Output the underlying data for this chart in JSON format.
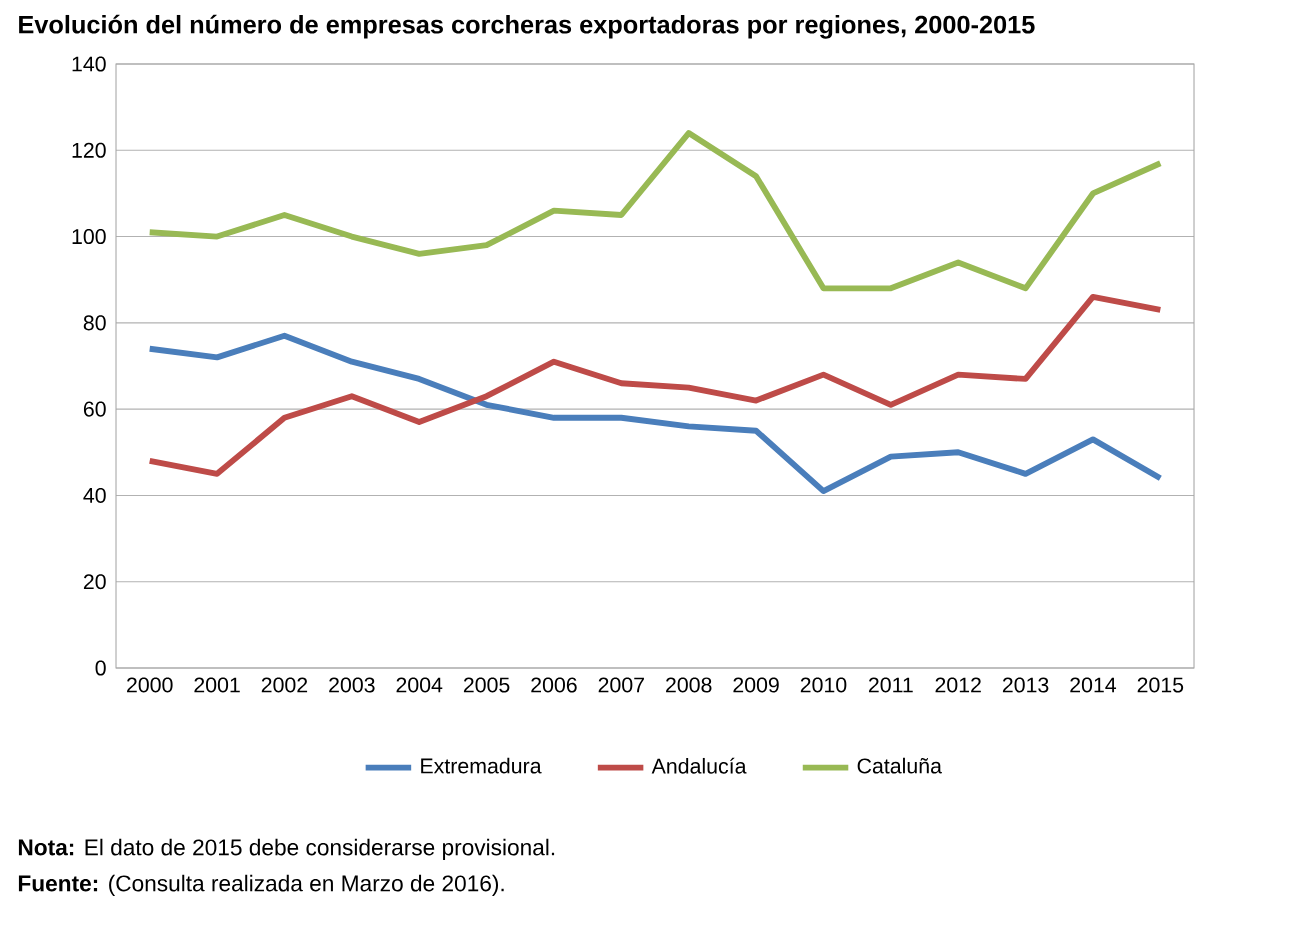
{
  "chart_data": {
    "type": "line",
    "title": "Evolución del número de empresas corcheras exportadoras por regiones, 2000-2015",
    "categories": [
      "2000",
      "2001",
      "2002",
      "2003",
      "2004",
      "2005",
      "2006",
      "2007",
      "2008",
      "2009",
      "2010",
      "2011",
      "2012",
      "2013",
      "2014",
      "2015"
    ],
    "series": [
      {
        "name": "Extremadura",
        "color": "#4a7ebb",
        "values": [
          74,
          72,
          77,
          71,
          67,
          61,
          58,
          58,
          56,
          55,
          41,
          49,
          50,
          45,
          53,
          44
        ]
      },
      {
        "name": "Andalucía",
        "color": "#be4b48",
        "values": [
          48,
          45,
          58,
          63,
          57,
          63,
          71,
          66,
          65,
          62,
          68,
          61,
          68,
          67,
          86,
          83
        ]
      },
      {
        "name": "Cataluña",
        "color": "#98b954",
        "values": [
          101,
          100,
          105,
          100,
          96,
          98,
          106,
          105,
          124,
          114,
          88,
          88,
          94,
          88,
          110,
          117
        ]
      }
    ],
    "ylim": [
      0,
      140
    ],
    "yticks": [
      0,
      20,
      40,
      60,
      80,
      100,
      120,
      140
    ],
    "grid": "y",
    "legend": "bottom",
    "marker": "none",
    "line_style": "solid",
    "annotations": [
      "**Nota:** El dato de 2015 debe considerarse provisional.",
      "**Fuente:** (Consulta realizada en Marzo de 2016)."
    ]
  }
}
